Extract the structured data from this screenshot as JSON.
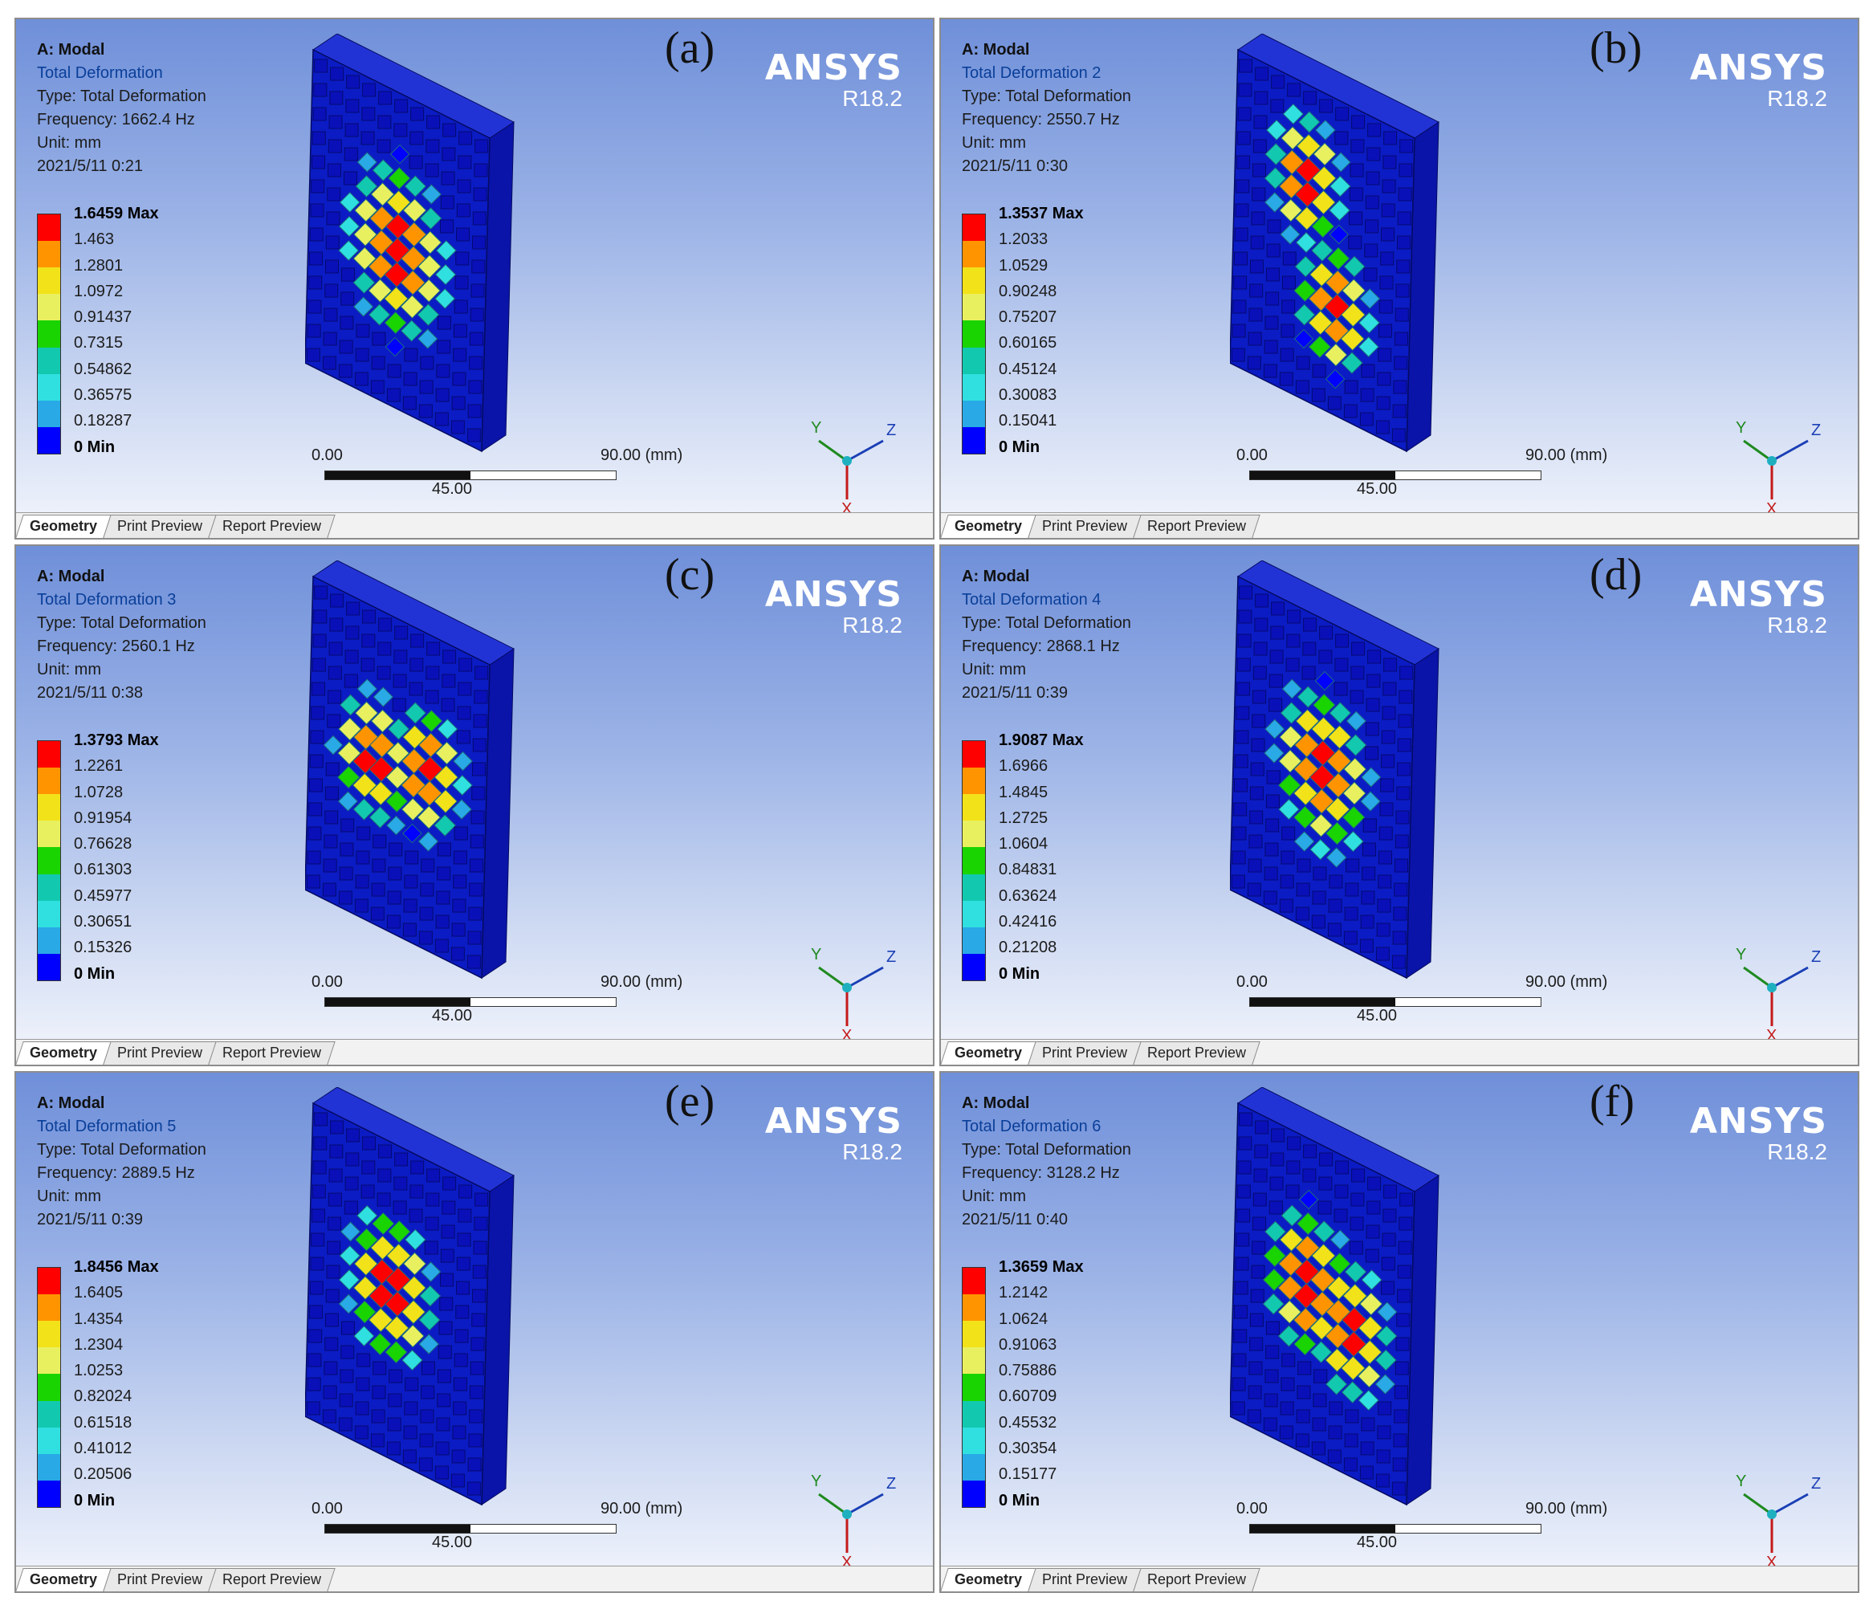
{
  "brand": {
    "name": "ANSYS",
    "version": "R18.2"
  },
  "tabs": [
    "Geometry",
    "Print Preview",
    "Report Preview"
  ],
  "scale": {
    "start": "0.00",
    "mid": "45.00",
    "end": "90.00 (mm)"
  },
  "axes": {
    "x": "X",
    "y": "Y",
    "z": "Z"
  },
  "legend_colors": [
    "#ff0000",
    "#ff9400",
    "#f2e21a",
    "#e8f060",
    "#19d400",
    "#12c9b0",
    "#30e0e0",
    "#29a9e6",
    "#0000ff"
  ],
  "panels": [
    {
      "label": "(a)",
      "model": "A: Modal",
      "result": "Total Deformation",
      "type": "Type: Total Deformation",
      "frequency": "Frequency: 1662.4 Hz",
      "unit": "Unit: mm",
      "date": "2021/5/11 0:21",
      "legend": [
        "1.6459 Max",
        "1.463",
        "1.2801",
        "1.0972",
        "0.91437",
        "0.7315",
        "0.54862",
        "0.36575",
        "0.18287",
        "0 Min"
      ]
    },
    {
      "label": "(b)",
      "model": "A: Modal",
      "result": "Total Deformation 2",
      "type": "Type: Total Deformation",
      "frequency": "Frequency: 2550.7 Hz",
      "unit": "Unit: mm",
      "date": "2021/5/11 0:30",
      "legend": [
        "1.3537 Max",
        "1.2033",
        "1.0529",
        "0.90248",
        "0.75207",
        "0.60165",
        "0.45124",
        "0.30083",
        "0.15041",
        "0 Min"
      ]
    },
    {
      "label": "(c)",
      "model": "A: Modal",
      "result": "Total Deformation 3",
      "type": "Type: Total Deformation",
      "frequency": "Frequency: 2560.1 Hz",
      "unit": "Unit: mm",
      "date": "2021/5/11 0:38",
      "legend": [
        "1.3793 Max",
        "1.2261",
        "1.0728",
        "0.91954",
        "0.76628",
        "0.61303",
        "0.45977",
        "0.30651",
        "0.15326",
        "0 Min"
      ]
    },
    {
      "label": "(d)",
      "model": "A: Modal",
      "result": "Total Deformation 4",
      "type": "Type: Total Deformation",
      "frequency": "Frequency: 2868.1 Hz",
      "unit": "Unit: mm",
      "date": "2021/5/11 0:39",
      "legend": [
        "1.9087 Max",
        "1.6966",
        "1.4845",
        "1.2725",
        "1.0604",
        "0.84831",
        "0.63624",
        "0.42416",
        "0.21208",
        "0 Min"
      ]
    },
    {
      "label": "(e)",
      "model": "A: Modal",
      "result": "Total Deformation 5",
      "type": "Type: Total Deformation",
      "frequency": "Frequency: 2889.5 Hz",
      "unit": "Unit: mm",
      "date": "2021/5/11 0:39",
      "legend": [
        "1.8456 Max",
        "1.6405",
        "1.4354",
        "1.2304",
        "1.0253",
        "0.82024",
        "0.61518",
        "0.41012",
        "0.20506",
        "0 Min"
      ]
    },
    {
      "label": "(f)",
      "model": "A: Modal",
      "result": "Total Deformation 6",
      "type": "Type: Total Deformation",
      "frequency": "Frequency: 3128.2 Hz",
      "unit": "Unit: mm",
      "date": "2021/5/11 0:40",
      "legend": [
        "1.3659 Max",
        "1.2142",
        "1.0624",
        "0.91063",
        "0.75886",
        "0.60709",
        "0.45532",
        "0.30354",
        "0.15177",
        "0 Min"
      ]
    }
  ]
}
